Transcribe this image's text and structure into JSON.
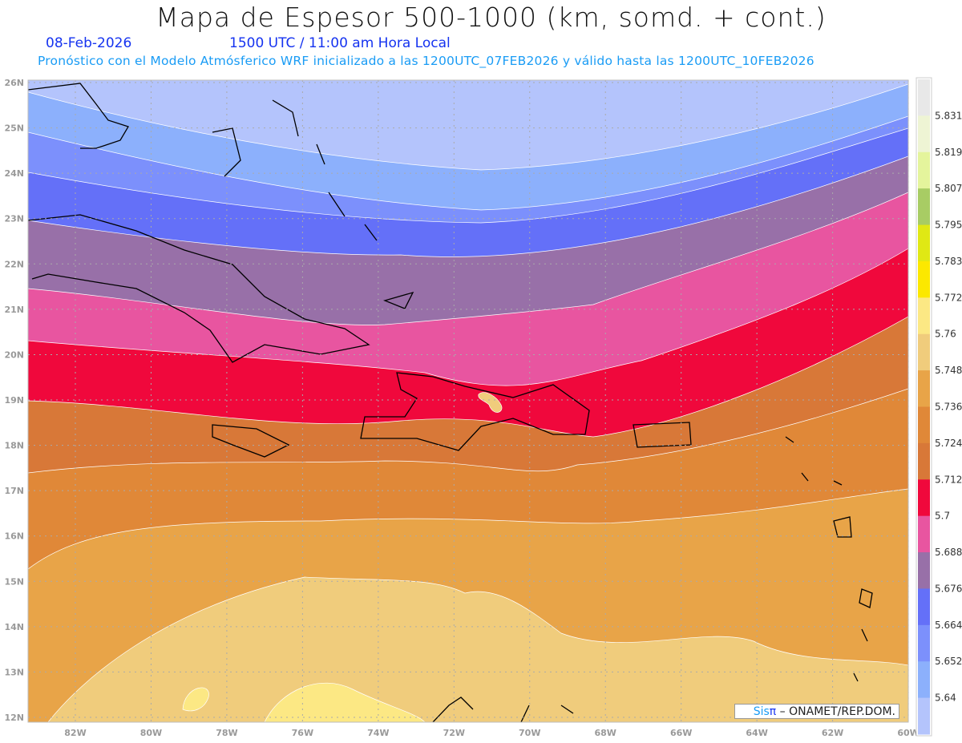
{
  "header": {
    "title": "Mapa de Espesor 500-1000 (km, somd. + cont.)",
    "date": "08-Feb-2026",
    "time": "1500 UTC / 11:00 am Hora Local",
    "subtitle": "Pronóstico con el Modelo Atmósferico WRF inicializado a las 1200UTC_07FEB2026 y válido hasta las  1200UTC_10FEB2026"
  },
  "map": {
    "lon_labels": [
      "82W",
      "80W",
      "78W",
      "76W",
      "74W",
      "72W",
      "70W",
      "68W",
      "66W",
      "64W",
      "62W",
      "60W"
    ],
    "lon_values": [
      82,
      80,
      78,
      76,
      74,
      72,
      70,
      68,
      66,
      64,
      62,
      60
    ],
    "lat_labels": [
      "26N",
      "25N",
      "24N",
      "23N",
      "22N",
      "21N",
      "20N",
      "19N",
      "18N",
      "17N",
      "16N",
      "15N",
      "14N",
      "13N",
      "12N"
    ],
    "lat_values": [
      26,
      25,
      24,
      23,
      22,
      21,
      20,
      19,
      18,
      17,
      16,
      15,
      14,
      13,
      12
    ]
  },
  "colorbar": {
    "labels": [
      "5.831",
      "5.819",
      "5.807",
      "5.795",
      "5.783",
      "5.772",
      "5.76",
      "5.748",
      "5.736",
      "5.724",
      "5.712",
      "5.7",
      "5.688",
      "5.676",
      "5.664",
      "5.652",
      "5.64"
    ],
    "colors": [
      "#e8e8e8",
      "#eef4d4",
      "#e4f49c",
      "#a8cc64",
      "#e0e814",
      "#fce800",
      "#fce884",
      "#f0cc7c",
      "#e8a448",
      "#e08838",
      "#d87838",
      "#f0083c",
      "#e855a0",
      "#9870a8",
      "#6470f8",
      "#7c90fc",
      "#8cb0fc",
      "#b4c4fc"
    ]
  },
  "credit": {
    "sis": "Sis",
    "pi": "π",
    "rest": " –  ONAMET/REP.DOM."
  }
}
